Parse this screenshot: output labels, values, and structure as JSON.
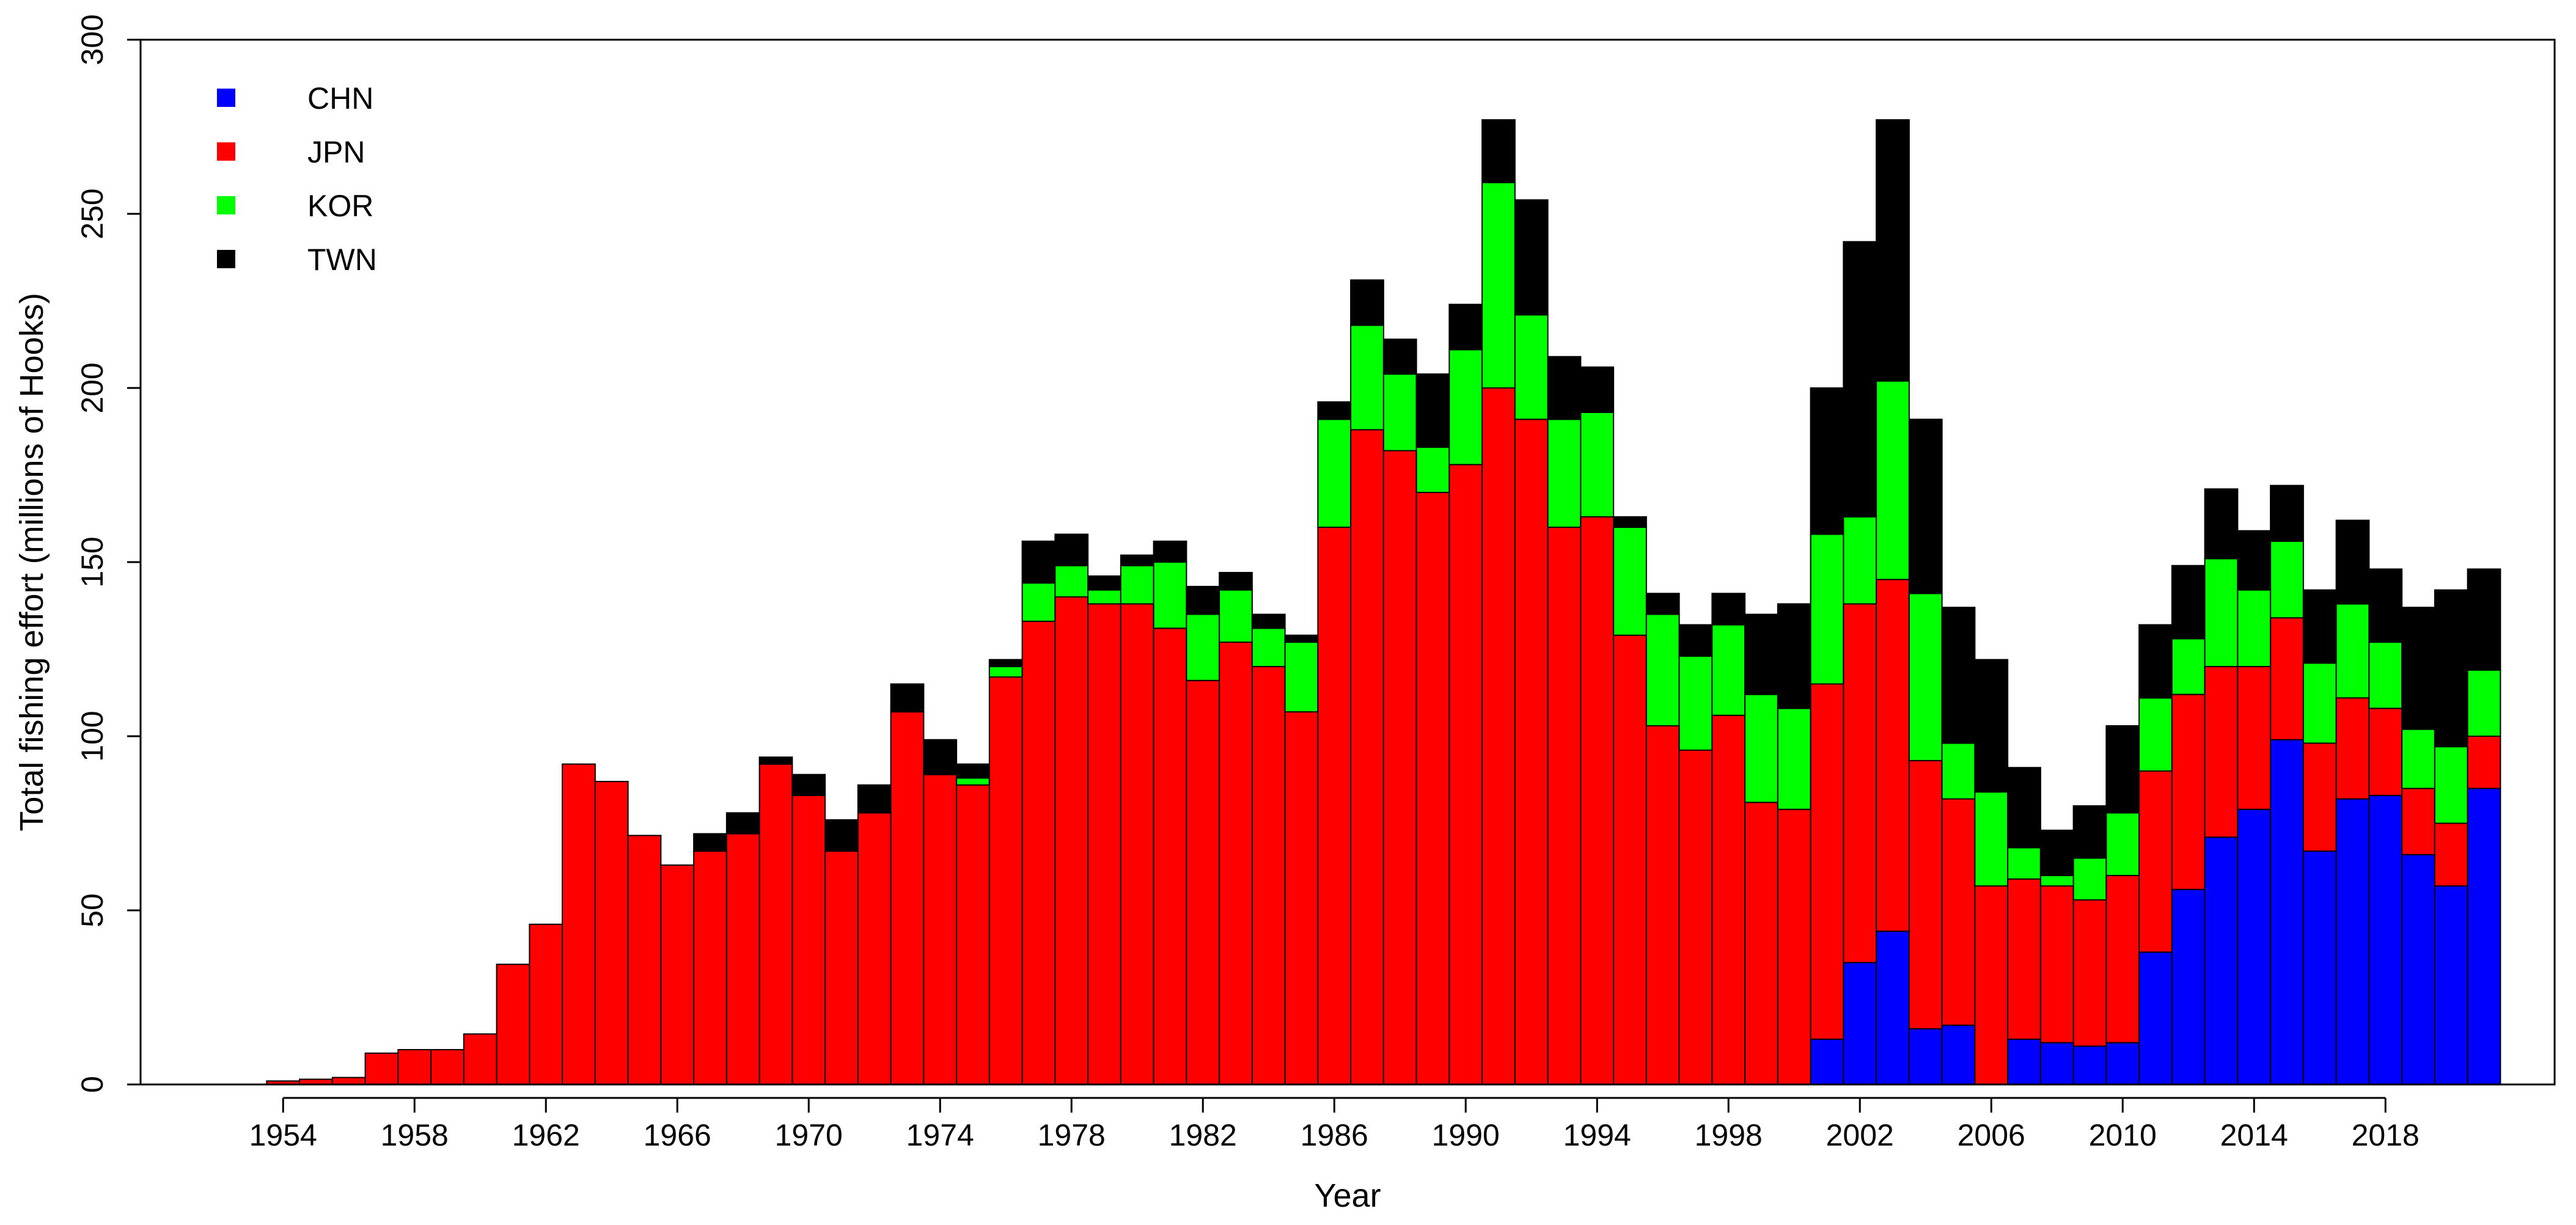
{
  "chart_data": {
    "type": "bar",
    "stacked": true,
    "xlabel": "Year",
    "ylabel": "Total fishing effort (millions of Hooks)",
    "ylim": [
      0,
      300
    ],
    "y_ticks": [
      0,
      50,
      100,
      150,
      200,
      250,
      300
    ],
    "x_tick_labels": [
      "1954",
      "1958",
      "1962",
      "1966",
      "1970",
      "1974",
      "1978",
      "1982",
      "1986",
      "1990",
      "1994",
      "1998",
      "2002",
      "2006",
      "2010",
      "2014",
      "2018"
    ],
    "legend_position": "top-left",
    "grid": false,
    "categories": [
      "1951",
      "1952",
      "1953",
      "1954",
      "1955",
      "1956",
      "1957",
      "1958",
      "1959",
      "1960",
      "1961",
      "1962",
      "1963",
      "1964",
      "1965",
      "1966",
      "1967",
      "1968",
      "1969",
      "1970",
      "1971",
      "1972",
      "1973",
      "1974",
      "1975",
      "1976",
      "1977",
      "1978",
      "1979",
      "1980",
      "1981",
      "1982",
      "1983",
      "1984",
      "1985",
      "1986",
      "1987",
      "1988",
      "1989",
      "1990",
      "1991",
      "1992",
      "1993",
      "1994",
      "1995",
      "1996",
      "1997",
      "1998",
      "1999",
      "2000",
      "2001",
      "2002",
      "2003",
      "2004",
      "2005",
      "2006",
      "2007",
      "2008",
      "2009",
      "2010",
      "2011",
      "2012",
      "2013",
      "2014",
      "2015",
      "2016",
      "2017",
      "2018",
      "2019",
      "2020",
      "2021"
    ],
    "series": [
      {
        "name": "CHN",
        "color": "#0000ff",
        "values": [
          0,
          0,
          0,
          0,
          0,
          0,
          0,
          0,
          0,
          0,
          0,
          0,
          0,
          0,
          0,
          0,
          0,
          0,
          0,
          0,
          0,
          0,
          0,
          0,
          0,
          0,
          0,
          0,
          0,
          0,
          0,
          0,
          0,
          0,
          0,
          0,
          0,
          0,
          0,
          0,
          0,
          0,
          0,
          0,
          0,
          0,
          0,
          0,
          0,
          0,
          13,
          35,
          44,
          16,
          17,
          0,
          13,
          12,
          11,
          12,
          38,
          56,
          71,
          79,
          99,
          67,
          82,
          83,
          66,
          57,
          85
        ]
      },
      {
        "name": "JPN",
        "color": "#ff0000",
        "values": [
          0,
          0,
          0,
          1,
          1.5,
          2,
          9,
          10,
          10,
          14.5,
          34.5,
          46,
          92,
          87,
          71.5,
          63,
          67,
          72,
          92,
          83,
          67,
          78,
          107,
          89,
          86,
          117,
          133,
          140,
          138,
          138,
          131,
          116,
          127,
          120,
          107,
          160,
          188,
          182,
          170,
          178,
          200,
          191,
          160,
          163,
          129,
          103,
          96,
          106,
          81,
          79,
          102,
          103,
          101,
          77,
          65,
          57,
          46,
          45,
          42,
          48,
          52,
          56,
          49,
          41,
          35,
          31,
          29,
          25,
          19,
          18,
          15
        ]
      },
      {
        "name": "KOR",
        "color": "#00ff00",
        "values": [
          0,
          0,
          0,
          0,
          0,
          0,
          0,
          0,
          0,
          0,
          0,
          0,
          0,
          0,
          0,
          0,
          0,
          0,
          0,
          0,
          0,
          0,
          0,
          0,
          2,
          3,
          11,
          9,
          4,
          11,
          19,
          19,
          15,
          11,
          20,
          31,
          30,
          22,
          13,
          33,
          59,
          30,
          31,
          30,
          31,
          32,
          27,
          26,
          31,
          29,
          43,
          25,
          57,
          48,
          16,
          27,
          9,
          3,
          12,
          18,
          21,
          16,
          31,
          22,
          22,
          23,
          27,
          19,
          17,
          22,
          19
        ]
      },
      {
        "name": "TWN",
        "color": "#000000",
        "values": [
          0,
          0,
          0,
          0,
          0,
          0,
          0,
          0,
          0,
          0,
          0,
          0,
          0,
          0,
          0,
          0,
          5,
          6,
          2,
          6,
          9,
          8,
          8,
          10,
          4,
          2,
          12,
          9,
          4,
          3,
          6,
          8,
          5,
          4,
          2,
          5,
          13,
          10,
          21,
          13,
          18,
          33,
          18,
          13,
          3,
          6,
          9,
          9,
          23,
          30,
          42,
          79,
          75,
          50,
          39,
          38,
          23,
          13,
          15,
          25,
          21,
          21,
          20,
          17,
          16,
          21,
          24,
          21,
          35,
          45,
          29
        ]
      }
    ]
  }
}
